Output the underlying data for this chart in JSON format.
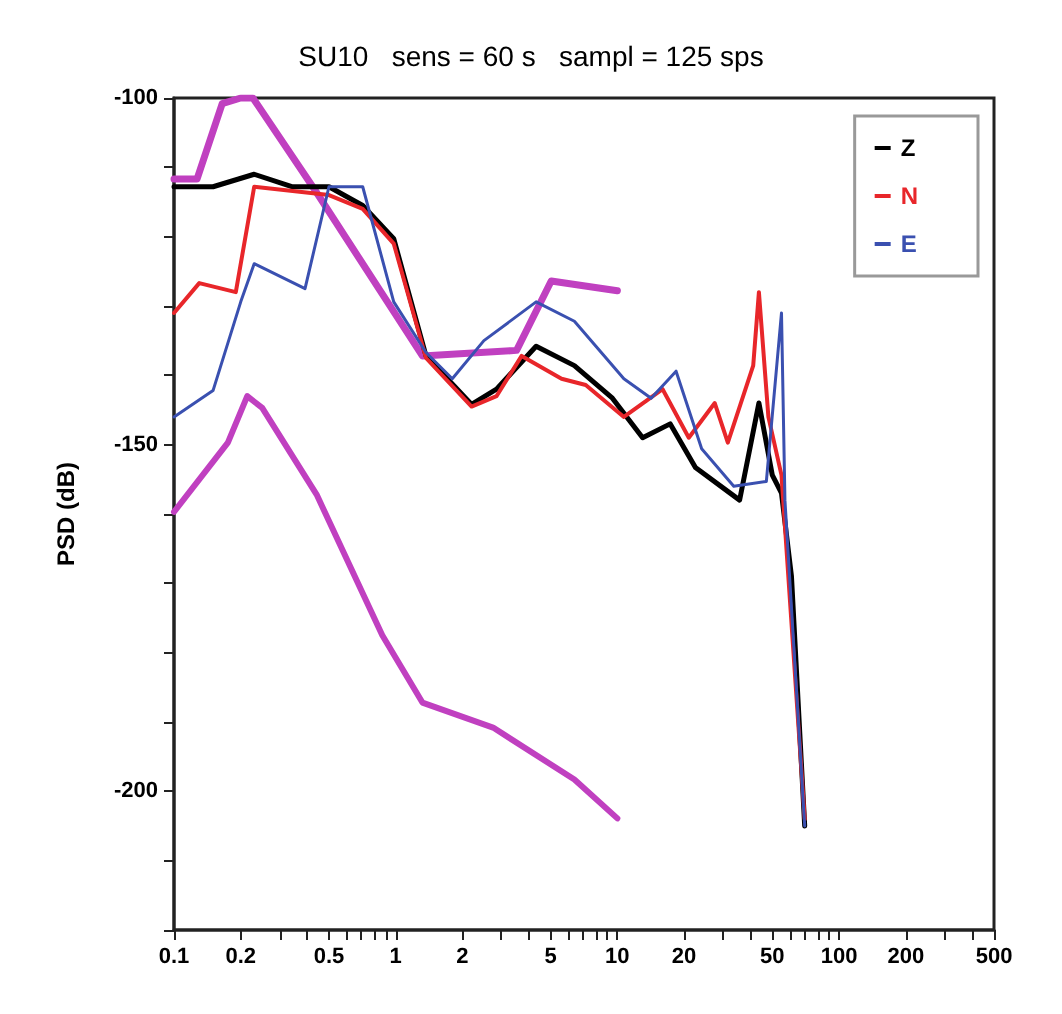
{
  "chart_data": {
    "type": "line",
    "title": "SU10   sens = 60 s   sampl = 125 sps",
    "ylabel": "PSD (dB)",
    "log": "x",
    "grid": false,
    "legend": "top right",
    "line_style": "solid",
    "marker": "none",
    "xlim": [
      0.1,
      500
    ],
    "xticks": [
      0.1,
      0.2,
      {
        "value": 0.3,
        "label": null
      },
      {
        "value": 0.4,
        "label": null
      },
      0.5,
      {
        "value": 0.6,
        "label": null
      },
      {
        "value": 0.7,
        "label": null
      },
      {
        "value": 0.8,
        "label": null
      },
      {
        "value": 0.9,
        "label": null
      },
      1,
      2,
      {
        "value": 3,
        "label": null
      },
      {
        "value": 4,
        "label": null
      },
      5,
      {
        "value": 6,
        "label": null
      },
      {
        "value": 7,
        "label": null
      },
      {
        "value": 8,
        "label": null
      },
      {
        "value": 9,
        "label": null
      },
      10,
      20,
      {
        "value": 30,
        "label": null
      },
      {
        "value": 40,
        "label": null
      },
      50,
      {
        "value": 60,
        "label": null
      },
      {
        "value": 70,
        "label": null
      },
      {
        "value": 80,
        "label": null
      },
      {
        "value": 90,
        "label": null
      },
      100,
      200,
      {
        "value": 300,
        "label": null
      },
      {
        "value": 400,
        "label": null
      },
      500
    ],
    "ylim": [
      -220,
      -100
    ],
    "yticks": [
      {
        "value": -220,
        "label": null
      },
      {
        "value": -210,
        "label": null
      },
      -200,
      {
        "value": -190,
        "label": null
      },
      {
        "value": -180,
        "label": null
      },
      {
        "value": -170,
        "label": null
      },
      {
        "value": -160,
        "label": null
      },
      -150,
      {
        "value": -140,
        "label": null
      },
      {
        "value": -130,
        "label": null
      },
      {
        "value": -120,
        "label": null
      },
      {
        "value": -110,
        "label": null
      },
      -100
    ],
    "series": [
      {
        "color": "#c040c0",
        "x": [
          0.1,
          0.127,
          0.165,
          0.2,
          0.227,
          0.439,
          1.32,
          3.51,
          5.03,
          10
        ],
        "values": [
          -111.7,
          -111.7,
          -100.8,
          -100,
          -100,
          -113.6,
          -137.2,
          -136.4,
          -126.4,
          -127.8
        ]
      },
      {
        "color": "#c040c0",
        "x": [
          0.1,
          0.175,
          0.214,
          0.25,
          0.44,
          0.87,
          1.32,
          2.75,
          6.4,
          10
        ],
        "values": [
          -159.7,
          -149.7,
          -143,
          -144.7,
          -157.2,
          -177.5,
          -187.2,
          -190.8,
          -198.3,
          -203.9
        ]
      },
      {
        "name": "Z",
        "color": "#000000",
        "x": [
          0.1,
          0.15,
          0.23,
          0.34,
          0.5,
          0.71,
          0.98,
          1.37,
          2.2,
          2.85,
          4.3,
          6.4,
          9.5,
          13,
          17.3,
          22.5,
          35.6,
          43.5,
          50,
          55,
          61,
          70
        ],
        "values": [
          -112.8,
          -112.8,
          -111,
          -112.8,
          -112.8,
          -115.5,
          -120.3,
          -137.2,
          -144.2,
          -142,
          -135.8,
          -138.6,
          -143.3,
          -149,
          -147,
          -153.3,
          -158,
          -144,
          -154.4,
          -157,
          -169,
          -205
        ]
      },
      {
        "name": "N",
        "color": "#e8262a",
        "x": [
          0.1,
          0.13,
          0.19,
          0.23,
          0.5,
          0.71,
          0.98,
          1.37,
          2.2,
          2.85,
          3.7,
          5.6,
          7.2,
          10.7,
          16,
          21,
          27.5,
          31.5,
          41,
          43.5,
          48,
          55,
          70
        ],
        "values": [
          -131,
          -126.7,
          -128,
          -112.8,
          -114,
          -116,
          -121,
          -137.5,
          -144.5,
          -143,
          -137.2,
          -140.5,
          -141.4,
          -146,
          -142,
          -149,
          -144,
          -149.7,
          -138.6,
          -128,
          -146,
          -154.4,
          -204
        ]
      },
      {
        "name": "E",
        "color": "#3a50b0",
        "x": [
          0.1,
          0.15,
          0.2,
          0.23,
          0.39,
          0.5,
          0.71,
          0.98,
          1.37,
          1.8,
          2.5,
          4.3,
          6.4,
          10.7,
          14.2,
          18.4,
          24,
          33.5,
          47,
          55,
          57,
          70
        ],
        "values": [
          -146,
          -142.2,
          -129.4,
          -123.9,
          -127.5,
          -112.8,
          -112.8,
          -129.4,
          -136.7,
          -140.5,
          -135,
          -129.4,
          -132.2,
          -140.5,
          -143.3,
          -139.4,
          -150.6,
          -156,
          -155.3,
          -131,
          -158,
          -205
        ]
      }
    ]
  }
}
